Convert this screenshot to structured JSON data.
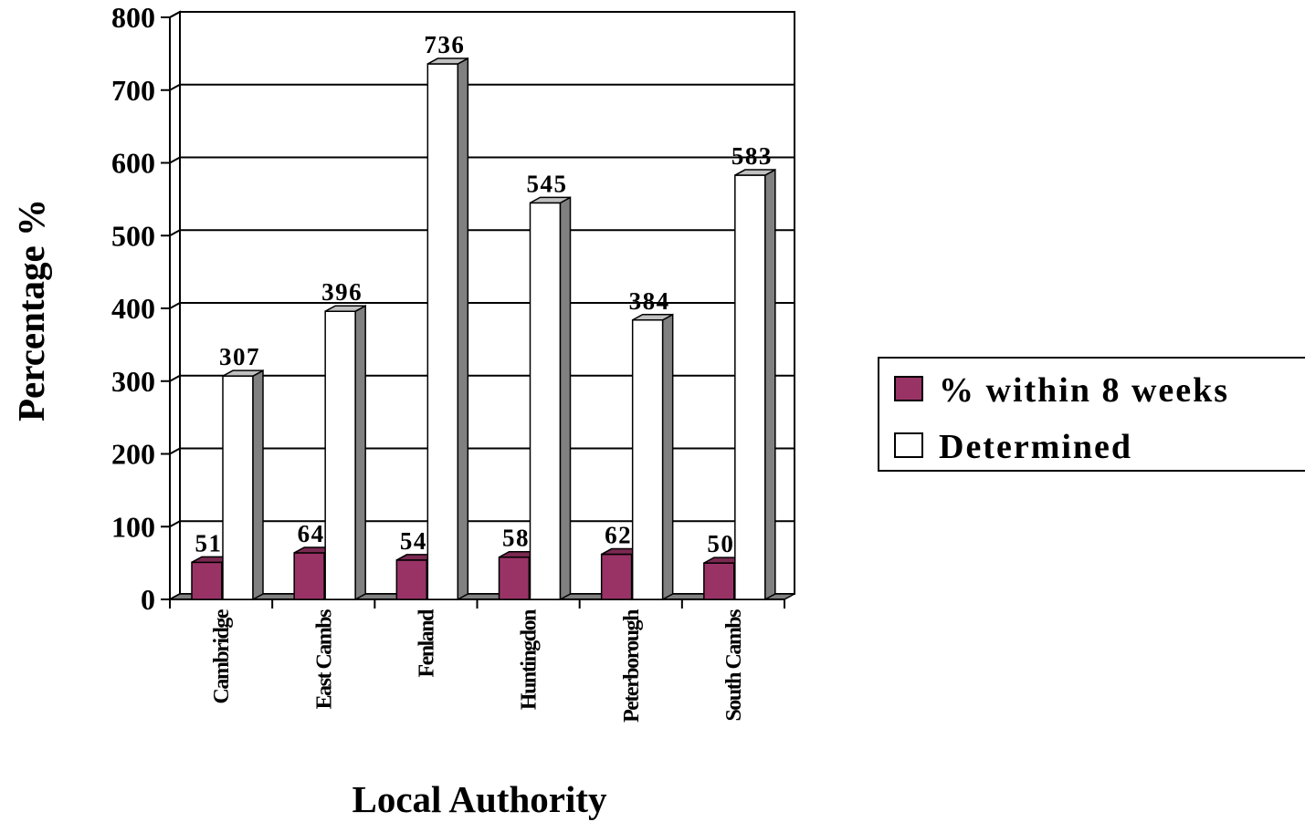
{
  "chart_data": {
    "type": "bar",
    "title": "",
    "xlabel": "Local Authority",
    "ylabel": "Percentage %",
    "ylim": [
      0,
      800
    ],
    "yticks": [
      0,
      100,
      200,
      300,
      400,
      500,
      600,
      700,
      800
    ],
    "categories": [
      "Cambridge",
      "East Cambs",
      "Fenland",
      "Huntingdon",
      "Peterborough",
      "South Cambs"
    ],
    "series": [
      {
        "name": "% within 8 weeks",
        "values": [
          51,
          64,
          54,
          58,
          62,
          50
        ],
        "color": "#993366"
      },
      {
        "name": "Determined",
        "values": [
          307,
          396,
          736,
          545,
          384,
          583
        ],
        "color": "#ffffff"
      }
    ],
    "grid": true,
    "legend_position": "right",
    "style": "3d-bar"
  }
}
